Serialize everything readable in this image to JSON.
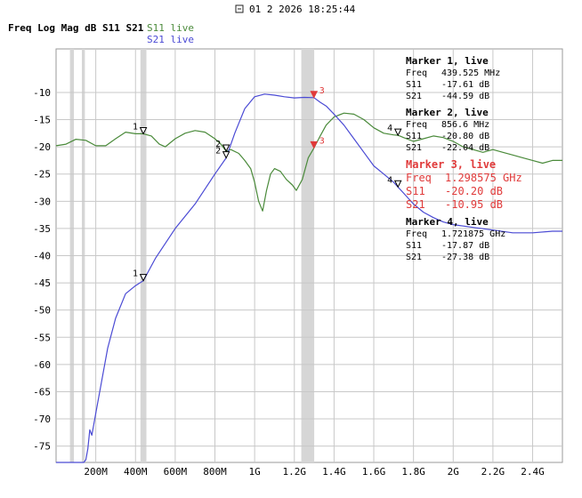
{
  "header": {
    "timestamp": "01 2 2026 18:25:44",
    "icon": "window-icon"
  },
  "chart_data": {
    "type": "line",
    "title": "Freq Log Mag dB S11 S21",
    "xlabel": "",
    "ylabel": "",
    "x_unit": "Hz",
    "xlim": [
      0,
      2550000000
    ],
    "ylim": [
      -78,
      -2
    ],
    "grid": true,
    "x_ticks": [
      {
        "value": 200000000,
        "label": "200M"
      },
      {
        "value": 400000000,
        "label": "400M"
      },
      {
        "value": 600000000,
        "label": "600M"
      },
      {
        "value": 800000000,
        "label": "800M"
      },
      {
        "value": 1000000000,
        "label": "1G"
      },
      {
        "value": 1200000000,
        "label": "1.2G"
      },
      {
        "value": 1400000000,
        "label": "1.4G"
      },
      {
        "value": 1600000000,
        "label": "1.6G"
      },
      {
        "value": 1800000000,
        "label": "1.8G"
      },
      {
        "value": 2000000000,
        "label": "2G"
      },
      {
        "value": 2200000000,
        "label": "2.2G"
      },
      {
        "value": 2400000000,
        "label": "2.4G"
      }
    ],
    "y_ticks": [
      {
        "value": -10,
        "label": "-10"
      },
      {
        "value": -15,
        "label": "-15"
      },
      {
        "value": -20,
        "label": "-20"
      },
      {
        "value": -25,
        "label": "-25"
      },
      {
        "value": -30,
        "label": "-30"
      },
      {
        "value": -35,
        "label": "-35"
      },
      {
        "value": -40,
        "label": "-40"
      },
      {
        "value": -45,
        "label": "-45"
      },
      {
        "value": -50,
        "label": "-50"
      },
      {
        "value": -55,
        "label": "-55"
      },
      {
        "value": -60,
        "label": "-60"
      },
      {
        "value": -65,
        "label": "-65"
      },
      {
        "value": -70,
        "label": "-70"
      },
      {
        "value": -75,
        "label": "-75"
      }
    ],
    "highlight_bands": [
      {
        "from": 70000000,
        "to": 90000000
      },
      {
        "from": 130000000,
        "to": 145000000
      },
      {
        "from": 425000000,
        "to": 455000000
      },
      {
        "from": 1235000000,
        "to": 1300000000
      }
    ],
    "series": [
      {
        "name": "S11 live",
        "color": "#4a8a3a",
        "x": [
          0,
          50000000,
          100000000,
          150000000,
          200000000,
          250000000,
          300000000,
          350000000,
          400000000,
          439525000,
          480000000,
          520000000,
          550000000,
          600000000,
          650000000,
          700000000,
          750000000,
          800000000,
          830000000,
          856600000,
          880000000,
          920000000,
          950000000,
          980000000,
          1000000000,
          1020000000,
          1040000000,
          1060000000,
          1080000000,
          1100000000,
          1130000000,
          1160000000,
          1190000000,
          1210000000,
          1240000000,
          1270000000,
          1298575000,
          1330000000,
          1360000000,
          1400000000,
          1450000000,
          1500000000,
          1550000000,
          1600000000,
          1650000000,
          1700000000,
          1721875000,
          1750000000,
          1800000000,
          1850000000,
          1900000000,
          1950000000,
          2000000000,
          2050000000,
          2100000000,
          2150000000,
          2200000000,
          2250000000,
          2300000000,
          2350000000,
          2400000000,
          2450000000,
          2500000000,
          2550000000
        ],
        "values": [
          -19.8,
          -19.5,
          -18.6,
          -18.8,
          -19.8,
          -19.8,
          -18.5,
          -17.3,
          -17.6,
          -17.6,
          -18.0,
          -19.5,
          -20.0,
          -18.5,
          -17.5,
          -17.0,
          -17.3,
          -18.5,
          -19.5,
          -20.8,
          -20.5,
          -21.2,
          -22.5,
          -24.0,
          -26.5,
          -30.0,
          -31.8,
          -28.0,
          -25.0,
          -24.0,
          -24.5,
          -26.0,
          -27.0,
          -28.0,
          -26.0,
          -22.0,
          -20.2,
          -18.0,
          -16.0,
          -14.5,
          -13.8,
          -14.0,
          -15.0,
          -16.5,
          -17.5,
          -17.8,
          -17.87,
          -18.3,
          -19.0,
          -18.5,
          -18.0,
          -18.3,
          -19.0,
          -20.0,
          -20.5,
          -21.0,
          -20.5,
          -21.0,
          -21.5,
          -22.0,
          -22.5,
          -23.0,
          -22.5,
          -22.5
        ]
      },
      {
        "name": "S21 live",
        "color": "#4a4ad4",
        "x": [
          0,
          100000000,
          140000000,
          150000000,
          160000000,
          170000000,
          180000000,
          190000000,
          200000000,
          230000000,
          260000000,
          300000000,
          350000000,
          400000000,
          439525000,
          500000000,
          600000000,
          700000000,
          800000000,
          856600000,
          900000000,
          950000000,
          1000000000,
          1050000000,
          1100000000,
          1150000000,
          1200000000,
          1250000000,
          1298575000,
          1330000000,
          1360000000,
          1400000000,
          1450000000,
          1500000000,
          1550000000,
          1600000000,
          1650000000,
          1700000000,
          1721875000,
          1750000000,
          1800000000,
          1850000000,
          1900000000,
          1950000000,
          2000000000,
          2100000000,
          2200000000,
          2300000000,
          2400000000,
          2500000000,
          2550000000
        ],
        "values": [
          -78.0,
          -78.0,
          -78.0,
          -77.5,
          -75.5,
          -72.0,
          -73.0,
          -71.0,
          -69.0,
          -63.0,
          -57.0,
          -51.5,
          -47.0,
          -45.5,
          -44.6,
          -40.5,
          -35.0,
          -30.5,
          -25.0,
          -22.04,
          -17.5,
          -13.0,
          -10.8,
          -10.3,
          -10.5,
          -10.8,
          -11.0,
          -10.9,
          -10.95,
          -11.8,
          -12.5,
          -14.0,
          -16.0,
          -18.5,
          -21.0,
          -23.5,
          -25.0,
          -26.5,
          -27.38,
          -28.5,
          -30.5,
          -32.0,
          -33.0,
          -33.8,
          -34.3,
          -34.8,
          -35.3,
          -35.8,
          -35.8,
          -35.5,
          -35.5
        ]
      }
    ],
    "markers": [
      {
        "id": "1",
        "x": 439525000,
        "s11": -17.61,
        "s21": -44.59
      },
      {
        "id": "2",
        "x": 856600000,
        "s11": -20.8,
        "s21": -22.04
      },
      {
        "id": "3",
        "x": 1298575000,
        "s11": -20.2,
        "s21": -10.95,
        "active": true
      },
      {
        "id": "4",
        "x": 1721875000,
        "s11": -17.87,
        "s21": -27.38
      }
    ],
    "marker_panels": [
      {
        "title": "Marker 1, live",
        "freq_label": "Freq",
        "freq": "439.525 MHz",
        "s11_label": "S11",
        "s11": "-17.61 dB",
        "s21_label": "S21",
        "s21": "-44.59 dB",
        "color": "#000000",
        "big": false
      },
      {
        "title": "Marker 2, live",
        "freq_label": "Freq",
        "freq": "856.6 MHz",
        "s11_label": "S11",
        "s11": "-20.80 dB",
        "s21_label": "S21",
        "s21": "-22.04 dB",
        "color": "#000000",
        "big": false
      },
      {
        "title": "Marker 3, live",
        "freq_label": "Freq",
        "freq": "1.298575 GHz",
        "s11_label": "S11",
        "s11": "-20.20 dB",
        "s21_label": "S21",
        "s21": "-10.95 dB",
        "color": "#e03a3a",
        "big": true
      },
      {
        "title": "Marker 4, live",
        "freq_label": "Freq",
        "freq": "1.721875 GHz",
        "s11_label": "S11",
        "s11": "-17.87 dB",
        "s21_label": "S21",
        "s21": "-27.38 dB",
        "color": "#000000",
        "big": false
      }
    ]
  }
}
